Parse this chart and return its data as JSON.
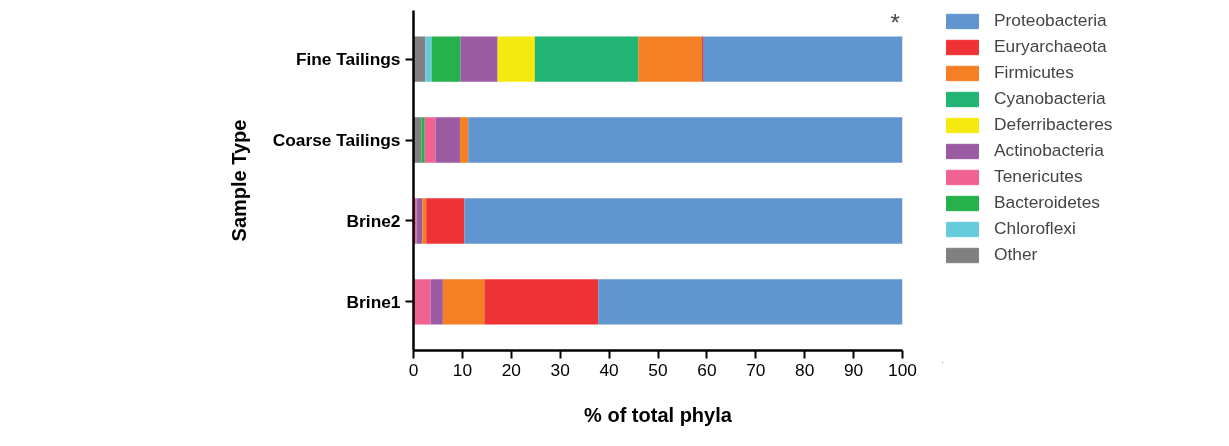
{
  "chart_data": {
    "type": "bar",
    "orientation": "horizontal",
    "stacked": true,
    "xlabel": "% of total phyla",
    "ylabel": "Sample Type",
    "categories": [
      "Fine Tailings",
      "Coarse Tailings",
      "Brine2",
      "Brine1"
    ],
    "series": [
      {
        "name": "Other",
        "color": "#808080",
        "values": [
          2.4,
          1.6,
          0,
          0
        ]
      },
      {
        "name": "Chloroflexi",
        "color": "#66cbdb",
        "values": [
          1.3,
          0,
          0,
          0
        ]
      },
      {
        "name": "Bacteroidetes",
        "color": "#27b14b",
        "values": [
          5.9,
          0.7,
          0,
          0
        ]
      },
      {
        "name": "Tenericutes",
        "color": "#f06292",
        "values": [
          0,
          2.2,
          0.6,
          3.5
        ]
      },
      {
        "name": "Actinobacteria",
        "color": "#9a5ba3",
        "values": [
          7.6,
          5.0,
          1.2,
          2.5
        ]
      },
      {
        "name": "Deferribacteres",
        "color": "#f4ea10",
        "values": [
          7.6,
          0,
          0,
          0
        ]
      },
      {
        "name": "Cyanobacteria",
        "color": "#22b473",
        "values": [
          21.2,
          0,
          0,
          0
        ]
      },
      {
        "name": "Firmicutes",
        "color": "#f47f24",
        "values": [
          13.0,
          1.7,
          0.8,
          8.5
        ]
      },
      {
        "name": "Euryarchaeota",
        "color": "#ee3236",
        "values": [
          0.2,
          0,
          7.8,
          23.3
        ]
      },
      {
        "name": "Proteobacteria",
        "color": "#6095cf",
        "values": [
          40.8,
          88.8,
          89.6,
          62.2
        ]
      }
    ],
    "xlim": [
      0,
      100
    ],
    "xticks": [
      0,
      10,
      20,
      30,
      40,
      50,
      60,
      70,
      80,
      90,
      100
    ],
    "annotations": [
      {
        "text": "*",
        "x": 100,
        "y": "Fine Tailings"
      }
    ],
    "legend": "right",
    "grid": false
  }
}
